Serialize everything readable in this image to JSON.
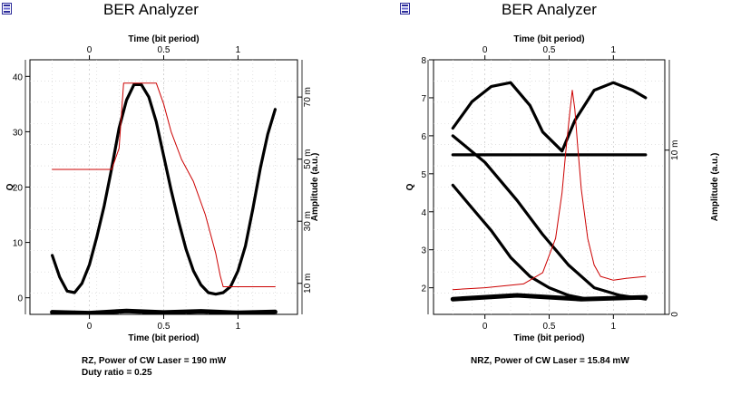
{
  "charts": [
    {
      "id": "left",
      "window_title": "BER Analyzer",
      "app_icon": "ber-analyzer-app-icon",
      "caption_lines": [
        "RZ, Power of CW Laser = 190 mW",
        "Duty ratio = 0.25"
      ],
      "chart_data": {
        "type": "line",
        "title": "",
        "xlabel_top": "Time (bit period)",
        "xlabel_bottom": "Time (bit period)",
        "ylabel_left": "Q",
        "ylabel_right": "Amplitude (a.u.)",
        "xlim": [
          -0.4,
          1.4
        ],
        "ylim_left": [
          -3,
          43
        ],
        "ylim_right": [
          0,
          82
        ],
        "x_ticks": [
          0,
          0.5,
          1
        ],
        "x_tick_labels": [
          "0",
          "0.5",
          "1"
        ],
        "y_left_ticks": [
          0,
          10,
          20,
          30,
          40
        ],
        "y_left_tick_labels": [
          "0",
          "10",
          "20",
          "30",
          "40"
        ],
        "y_right_ticks": [
          10,
          30,
          50,
          70
        ],
        "y_right_tick_labels": [
          "10 m",
          "30 m",
          "50 m",
          "70 m"
        ],
        "grid": true,
        "series": [
          {
            "role": "eye-diagram-traces",
            "axis": "right",
            "color": "#000000",
            "x": [
              -0.25,
              -0.2,
              -0.15,
              -0.1,
              -0.05,
              0.0,
              0.05,
              0.1,
              0.15,
              0.2,
              0.25,
              0.3,
              0.35,
              0.4,
              0.45,
              0.5,
              0.55,
              0.6,
              0.65,
              0.7,
              0.75,
              0.8,
              0.85,
              0.9,
              0.95,
              1.0,
              1.05,
              1.1,
              1.15,
              1.2,
              1.25
            ],
            "y": [
              19,
              12,
              7.5,
              7,
              10,
              16,
              25,
              35,
              47,
              60,
              69,
              74,
              74,
              70,
              62,
              51,
              40,
              30,
              21,
              14,
              9.5,
              7,
              6.5,
              7,
              9,
              14,
              22,
              34,
              47,
              58,
              66
            ]
          },
          {
            "role": "eye-diagram-baseline",
            "axis": "right",
            "color": "#000000",
            "x": [
              -0.25,
              0.0,
              0.25,
              0.5,
              0.75,
              1.0,
              1.25
            ],
            "y": [
              0.7,
              0.4,
              1.1,
              0.6,
              1.0,
              0.5,
              0.8
            ]
          },
          {
            "role": "q-factor",
            "axis": "left",
            "color": "#cc0000",
            "x": [
              -0.25,
              0.15,
              0.2,
              0.23,
              0.3,
              0.45,
              0.5,
              0.55,
              0.62,
              0.7,
              0.78,
              0.85,
              0.88,
              0.9,
              0.92,
              1.25
            ],
            "y": [
              23.2,
              23.2,
              27,
              38.8,
              38.8,
              38.8,
              35,
              30,
              25,
              21,
              15,
              8,
              4,
              2,
              2,
              2
            ]
          }
        ]
      }
    },
    {
      "id": "right",
      "window_title": "BER Analyzer",
      "app_icon": "ber-analyzer-app-icon",
      "caption_lines": [
        "NRZ, Power of CW Laser = 15.84 mW"
      ],
      "chart_data": {
        "type": "line",
        "title": "",
        "xlabel_top": "Time (bit period)",
        "xlabel_bottom": "Time (bit period)",
        "ylabel_left": "Q",
        "ylabel_right": "Amplitude (a.u.)",
        "xlim": [
          -0.4,
          1.4
        ],
        "ylim_left": [
          1.3,
          8
        ],
        "ylim_right": [
          0,
          15.5
        ],
        "x_ticks": [
          0,
          0.5,
          1
        ],
        "x_tick_labels": [
          "0",
          "0.5",
          "1"
        ],
        "y_left_ticks": [
          2,
          3,
          4,
          5,
          6,
          7,
          8
        ],
        "y_left_tick_labels": [
          "2",
          "3",
          "4",
          "5",
          "6",
          "7",
          "8"
        ],
        "y_right_ticks": [
          0,
          10
        ],
        "y_right_tick_labels": [
          "0",
          "10 m"
        ],
        "grid": true,
        "series": [
          {
            "role": "eye-diagram-falling",
            "axis": "left",
            "color": "#000000",
            "x": [
              -0.25,
              -0.1,
              0.05,
              0.2,
              0.35,
              0.5,
              0.65,
              0.8
            ],
            "y": [
              4.7,
              4.1,
              3.5,
              2.8,
              2.3,
              2.0,
              1.8,
              1.7
            ]
          },
          {
            "role": "eye-diagram-crossing",
            "axis": "left",
            "color": "#000000",
            "x": [
              -0.25,
              0.0,
              0.25,
              0.45,
              0.65,
              0.85,
              1.05,
              1.25
            ],
            "y": [
              6.0,
              5.3,
              4.3,
              3.4,
              2.6,
              2.0,
              1.8,
              1.7
            ]
          },
          {
            "role": "eye-diagram-top",
            "axis": "left",
            "color": "#000000",
            "x": [
              -0.25,
              -0.1,
              0.05,
              0.2,
              0.35,
              0.45,
              0.6,
              0.7,
              0.85,
              1.0,
              1.15,
              1.25
            ],
            "y": [
              6.2,
              6.9,
              7.3,
              7.4,
              6.8,
              6.1,
              5.6,
              6.4,
              7.2,
              7.4,
              7.2,
              7.0
            ]
          },
          {
            "role": "eye-diagram-flat",
            "axis": "left",
            "color": "#000000",
            "x": [
              -0.25,
              0.25,
              0.75,
              1.25
            ],
            "y": [
              5.5,
              5.5,
              5.5,
              5.5
            ]
          },
          {
            "role": "eye-diagram-floor",
            "axis": "left",
            "color": "#000000",
            "x": [
              -0.25,
              0.25,
              0.75,
              1.25
            ],
            "y": [
              1.7,
              1.8,
              1.7,
              1.75
            ]
          },
          {
            "role": "q-factor",
            "axis": "left",
            "color": "#cc0000",
            "x": [
              -0.25,
              0.0,
              0.3,
              0.45,
              0.55,
              0.6,
              0.63,
              0.66,
              0.68,
              0.7,
              0.72,
              0.75,
              0.8,
              0.85,
              0.9,
              1.0,
              1.1,
              1.25
            ],
            "y": [
              1.95,
              2.0,
              2.1,
              2.4,
              3.3,
              4.5,
              5.6,
              6.6,
              7.2,
              6.7,
              5.8,
              4.6,
              3.3,
              2.6,
              2.3,
              2.2,
              2.25,
              2.3
            ]
          }
        ]
      }
    }
  ]
}
